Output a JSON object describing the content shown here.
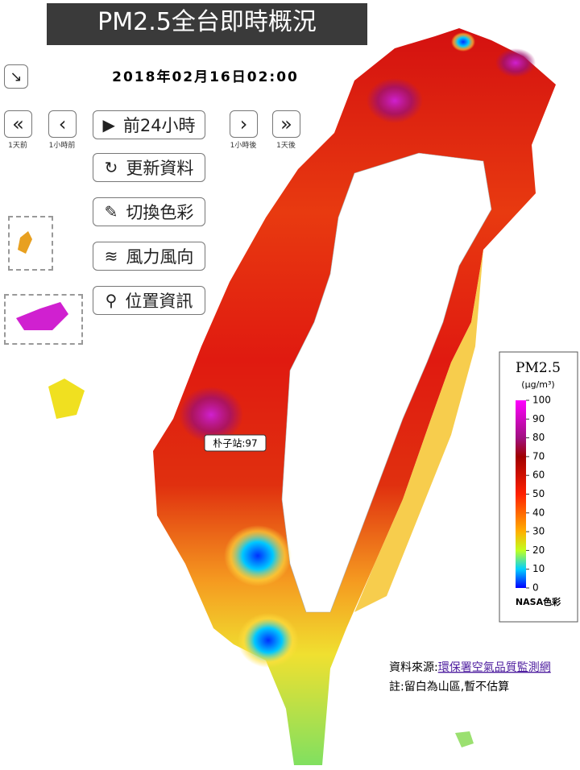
{
  "header": {
    "title": "PM2.5全台即時概況",
    "timestamp": "2018年02月16日02:00"
  },
  "controls": {
    "nav": [
      {
        "icon": "«",
        "label": "1天前"
      },
      {
        "icon": "‹",
        "label": "1小時前"
      },
      {
        "icon": "›",
        "label": "1小時後"
      },
      {
        "icon": "»",
        "label": "1天後"
      }
    ],
    "buttons": [
      "前24小時",
      "更新資料",
      "切換色彩",
      "風力風向",
      "位置資訊"
    ]
  },
  "map": {
    "station_label": "朴子站:97"
  },
  "legend": {
    "title": "PM2.5",
    "unit": "(μg/m³)",
    "range": [
      0,
      100
    ],
    "ticks": [
      0,
      10,
      20,
      30,
      40,
      50,
      60,
      70,
      80,
      90,
      100
    ],
    "footer": "NASA色彩"
  },
  "source": {
    "prefix": "資料來源:",
    "link": "環保署空氣品質監測網",
    "note": "註:留白為山區,暫不估算"
  }
}
